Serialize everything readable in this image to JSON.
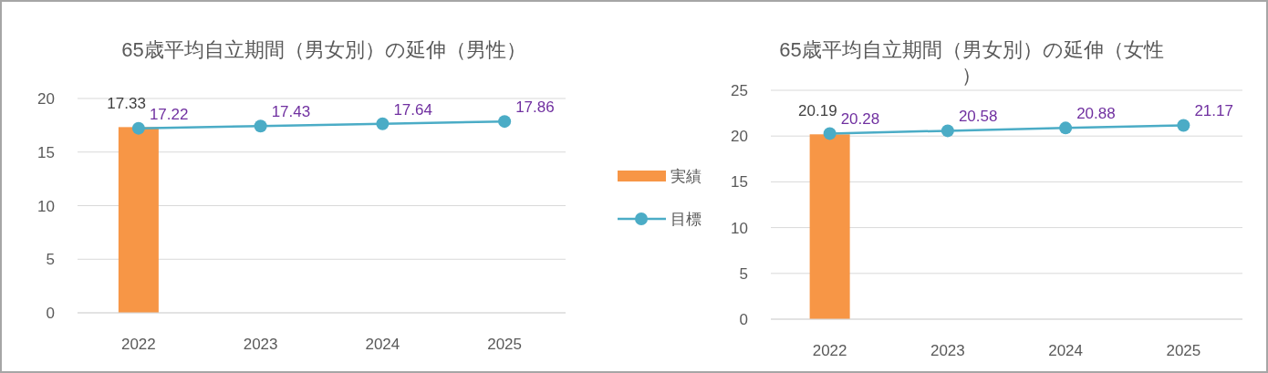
{
  "chart_data": [
    {
      "type": "bar",
      "title": "65歳平均自立期間（男女別）の延伸（男性）",
      "categories": [
        "2022",
        "2023",
        "2024",
        "2025"
      ],
      "ylim": [
        0,
        20
      ],
      "yticks": [
        0,
        5,
        10,
        15,
        20
      ],
      "grid": "y",
      "legend": "right",
      "data_labels": true,
      "series": [
        {
          "name": "実績",
          "color": "#f79646",
          "values": [
            17.33,
            null,
            null,
            null
          ]
        },
        {
          "name": "目標",
          "type": "line",
          "color": "#4bacc6",
          "marker": "circle",
          "values": [
            17.22,
            17.43,
            17.64,
            17.86
          ]
        }
      ]
    },
    {
      "type": "bar",
      "title": "65歳平均自立期間（男女別）の延伸（女性）",
      "categories": [
        "2022",
        "2023",
        "2024",
        "2025"
      ],
      "ylim": [
        0,
        25
      ],
      "yticks": [
        0,
        5,
        10,
        15,
        20,
        25
      ],
      "grid": "y",
      "data_labels": true,
      "series": [
        {
          "color": "#f79646",
          "values": [
            20.19,
            null,
            null,
            null
          ]
        },
        {
          "type": "line",
          "color": "#4bacc6",
          "marker": "circle",
          "values": [
            20.28,
            20.58,
            20.88,
            21.17
          ]
        }
      ]
    }
  ]
}
